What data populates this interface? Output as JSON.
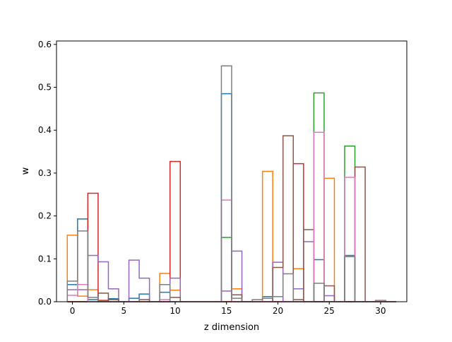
{
  "chart_data": {
    "type": "step-histogram",
    "xlabel": "z dimension",
    "ylabel": "w",
    "xlim": [
      -1.55,
      32.55
    ],
    "ylim": [
      0,
      0.608
    ],
    "xticks": [
      0,
      5,
      10,
      15,
      20,
      25,
      30
    ],
    "yticks": [
      0.0,
      0.1,
      0.2,
      0.3,
      0.4,
      0.5,
      0.6
    ],
    "xtick_labels": [
      "0",
      "5",
      "10",
      "15",
      "20",
      "25",
      "30"
    ],
    "ytick_labels": [
      "0.0",
      "0.1",
      "0.2",
      "0.3",
      "0.4",
      "0.5",
      "0.6"
    ],
    "grid": false,
    "legend": "none",
    "series": [
      {
        "color": "#1f77b4",
        "values": [
          0.04,
          0.193,
          0.005,
          0,
          0.007,
          0,
          0.008,
          0.018,
          0,
          0.022,
          0,
          0,
          0,
          0,
          0,
          0.485,
          0,
          0,
          0,
          0.012,
          0,
          0,
          0,
          0,
          0.098,
          0,
          0,
          0.108,
          0,
          0,
          0,
          0
        ]
      },
      {
        "color": "#ff7f0e",
        "values": [
          0.155,
          0.013,
          0.028,
          0,
          0,
          0,
          0,
          0,
          0,
          0.066,
          0.027,
          0,
          0,
          0,
          0,
          0,
          0.03,
          0,
          0,
          0.304,
          0,
          0,
          0.077,
          0,
          0,
          0.288,
          0,
          0,
          0,
          0,
          0,
          0
        ]
      },
      {
        "color": "#2ca02c",
        "values": [
          0,
          0,
          0,
          0,
          0,
          0,
          0,
          0,
          0,
          0,
          0,
          0,
          0,
          0,
          0,
          0.15,
          0,
          0,
          0,
          0,
          0,
          0,
          0,
          0,
          0.487,
          0,
          0,
          0.363,
          0,
          0,
          0,
          0
        ]
      },
      {
        "color": "#d62728",
        "values": [
          0,
          0,
          0.253,
          0.003,
          0,
          0,
          0,
          0,
          0,
          0,
          0.327,
          0,
          0,
          0,
          0,
          0,
          0,
          0,
          0,
          0,
          0,
          0,
          0.322,
          0,
          0,
          0,
          0,
          0,
          0,
          0,
          0,
          0
        ]
      },
      {
        "color": "#9467bd",
        "values": [
          0.028,
          0.028,
          0.108,
          0.093,
          0.03,
          0,
          0.097,
          0.055,
          0,
          0,
          0.055,
          0,
          0,
          0,
          0,
          0.025,
          0.118,
          0,
          0,
          0,
          0.092,
          0,
          0.03,
          0.14,
          0,
          0.014,
          0,
          0,
          0,
          0,
          0,
          0
        ]
      },
      {
        "color": "#8c564b",
        "values": [
          0,
          0,
          0,
          0.02,
          0.005,
          0,
          0,
          0.005,
          0,
          0,
          0.01,
          0,
          0,
          0,
          0,
          0,
          0.016,
          0,
          0,
          0,
          0.08,
          0.387,
          0.005,
          0.168,
          0,
          0.037,
          0,
          0,
          0.314,
          0,
          0,
          0
        ]
      },
      {
        "color": "#e377c2",
        "values": [
          0.015,
          0.04,
          0,
          0,
          0,
          0,
          0,
          0,
          0,
          0.005,
          0,
          0,
          0,
          0,
          0,
          0.237,
          0,
          0,
          0,
          0,
          0,
          0,
          0,
          0,
          0.395,
          0,
          0,
          0.29,
          0,
          0,
          0,
          0
        ]
      },
      {
        "color": "#7f7f7f",
        "values": [
          0.048,
          0.165,
          0.01,
          0,
          0,
          0,
          0,
          0,
          0,
          0.04,
          0,
          0,
          0,
          0,
          0,
          0.55,
          0.008,
          0,
          0.005,
          0.008,
          0.012,
          0.065,
          0,
          0,
          0.043,
          0,
          0,
          0.105,
          0,
          0,
          0.003,
          0
        ]
      }
    ]
  }
}
